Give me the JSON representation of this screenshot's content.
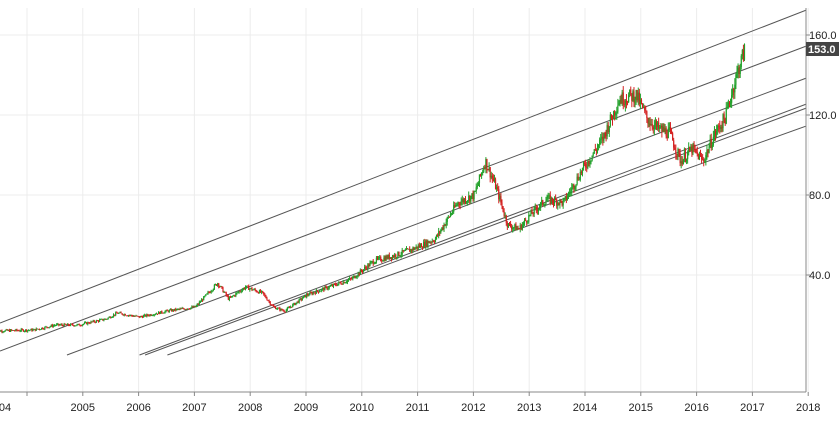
{
  "chart_data": {
    "type": "candlestick",
    "x_axis": {
      "ticks": [
        "04",
        "2005",
        "2006",
        "2007",
        "2008",
        "2009",
        "2010",
        "2011",
        "2012",
        "2013",
        "2014",
        "2015",
        "2016",
        "2017",
        "2018"
      ]
    },
    "y_axis": {
      "position": "right",
      "range": [
        0,
        168
      ],
      "ticks": [
        {
          "value": 40,
          "label": "40.0"
        },
        {
          "value": 80,
          "label": "80.0"
        },
        {
          "value": 120,
          "label": "120.0"
        },
        {
          "value": 160,
          "label": "160.0"
        }
      ]
    },
    "last_price": {
      "value": 153,
      "label": "153.0"
    },
    "grid": true,
    "trend_channels": [
      {
        "from": [
          2004.0,
          16
        ],
        "to": [
          2018.5,
          173
        ]
      },
      {
        "from": [
          2004.0,
          2
        ],
        "to": [
          2018.5,
          155
        ]
      },
      {
        "from": [
          2005.2,
          0
        ],
        "to": [
          2018.5,
          139
        ]
      },
      {
        "from": [
          2006.5,
          0
        ],
        "to": [
          2018.5,
          126
        ]
      },
      {
        "from": [
          2006.6,
          0
        ],
        "to": [
          2018.5,
          124
        ]
      },
      {
        "from": [
          2007.0,
          0
        ],
        "to": [
          2018.5,
          115
        ]
      }
    ],
    "price_path": [
      [
        2003.9,
        12
      ],
      [
        2004.6,
        12.5
      ],
      [
        2005.0,
        15
      ],
      [
        2005.4,
        15
      ],
      [
        2005.9,
        18
      ],
      [
        2006.1,
        21
      ],
      [
        2006.5,
        19
      ],
      [
        2007.0,
        22
      ],
      [
        2007.5,
        24
      ],
      [
        2007.9,
        36
      ],
      [
        2008.1,
        28
      ],
      [
        2008.4,
        34
      ],
      [
        2008.7,
        31
      ],
      [
        2008.9,
        24
      ],
      [
        2009.1,
        22
      ],
      [
        2009.5,
        30
      ],
      [
        2009.9,
        34
      ],
      [
        2010.3,
        38
      ],
      [
        2010.7,
        47
      ],
      [
        2011.1,
        50
      ],
      [
        2011.4,
        53
      ],
      [
        2011.8,
        58
      ],
      [
        2012.2,
        76
      ],
      [
        2012.5,
        80
      ],
      [
        2012.7,
        97
      ],
      [
        2012.9,
        83
      ],
      [
        2013.1,
        65
      ],
      [
        2013.3,
        63
      ],
      [
        2013.5,
        70
      ],
      [
        2013.8,
        78
      ],
      [
        2014.1,
        76
      ],
      [
        2014.4,
        91
      ],
      [
        2014.8,
        108
      ],
      [
        2015.1,
        128
      ],
      [
        2015.4,
        130
      ],
      [
        2015.6,
        118
      ],
      [
        2015.8,
        113
      ],
      [
        2016.0,
        111
      ],
      [
        2016.2,
        97
      ],
      [
        2016.4,
        103
      ],
      [
        2016.6,
        97
      ],
      [
        2016.8,
        110
      ],
      [
        2017.0,
        119
      ],
      [
        2017.2,
        140
      ],
      [
        2017.35,
        153
      ]
    ]
  }
}
